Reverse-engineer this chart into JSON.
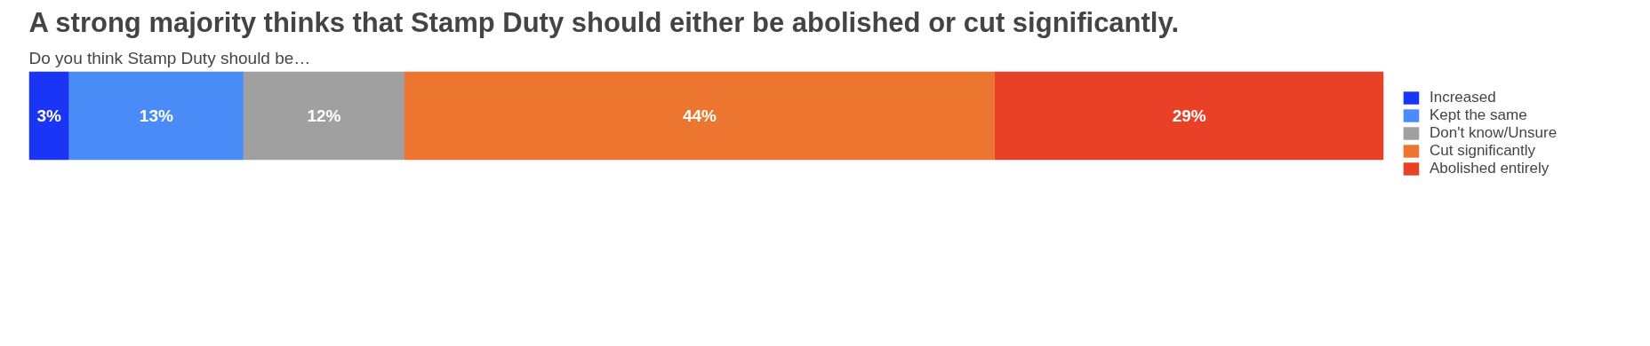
{
  "chart_data": {
    "type": "bar",
    "orientation": "horizontal",
    "stacked": true,
    "title": "A strong majority thinks that Stamp Duty should either be abolished or cut significantly.",
    "subtitle": "Do you think Stamp Duty should be…",
    "categories": [
      null
    ],
    "legend": "right",
    "series": [
      {
        "name": "Increased",
        "color": "#1a35f5",
        "values": [
          3
        ],
        "value_labels": [
          "3%"
        ]
      },
      {
        "name": "Kept the same",
        "color": "#4a8cf7",
        "values": [
          13
        ],
        "value_labels": [
          "13%"
        ]
      },
      {
        "name": "Don't know/Unsure",
        "color": "#a0a0a0",
        "values": [
          12
        ],
        "value_labels": [
          "12%"
        ]
      },
      {
        "name": "Cut significantly",
        "color": "#ec7530",
        "values": [
          44
        ],
        "value_labels": [
          "44%"
        ]
      },
      {
        "name": "Abolished entirely",
        "color": "#e94128",
        "values": [
          29
        ],
        "value_labels": [
          "29%"
        ]
      }
    ]
  }
}
